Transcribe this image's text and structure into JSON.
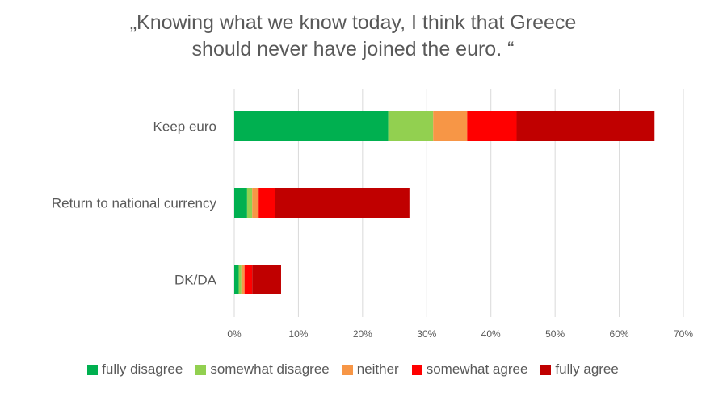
{
  "chart_data": {
    "type": "bar",
    "orientation": "horizontal",
    "stacked": true,
    "title_lines": [
      "„Knowing what we know today, I think that Greece",
      "should never have joined the euro. “"
    ],
    "categories": [
      "Keep euro",
      "Return to national currency",
      "DK/DA"
    ],
    "series": [
      {
        "name": "fully disagree",
        "color": "#00b050",
        "values": [
          24.0,
          2.0,
          0.7
        ]
      },
      {
        "name": "somewhat disagree",
        "color": "#92d050",
        "values": [
          7.0,
          0.8,
          0.4
        ]
      },
      {
        "name": "neither",
        "color": "#f79646",
        "values": [
          5.3,
          1.0,
          0.5
        ]
      },
      {
        "name": "somewhat agree",
        "color": "#ff0000",
        "values": [
          7.7,
          2.5,
          1.2
        ]
      },
      {
        "name": "fully agree",
        "color": "#c00000",
        "values": [
          21.5,
          21.0,
          4.5
        ]
      }
    ],
    "xlim": [
      0,
      70
    ],
    "xticks": [
      0,
      10,
      20,
      30,
      40,
      50,
      60,
      70
    ],
    "xtick_labels": [
      "0%",
      "10%",
      "20%",
      "30%",
      "40%",
      "50%",
      "60%",
      "70%"
    ],
    "grid": true,
    "legend_position": "bottom"
  }
}
